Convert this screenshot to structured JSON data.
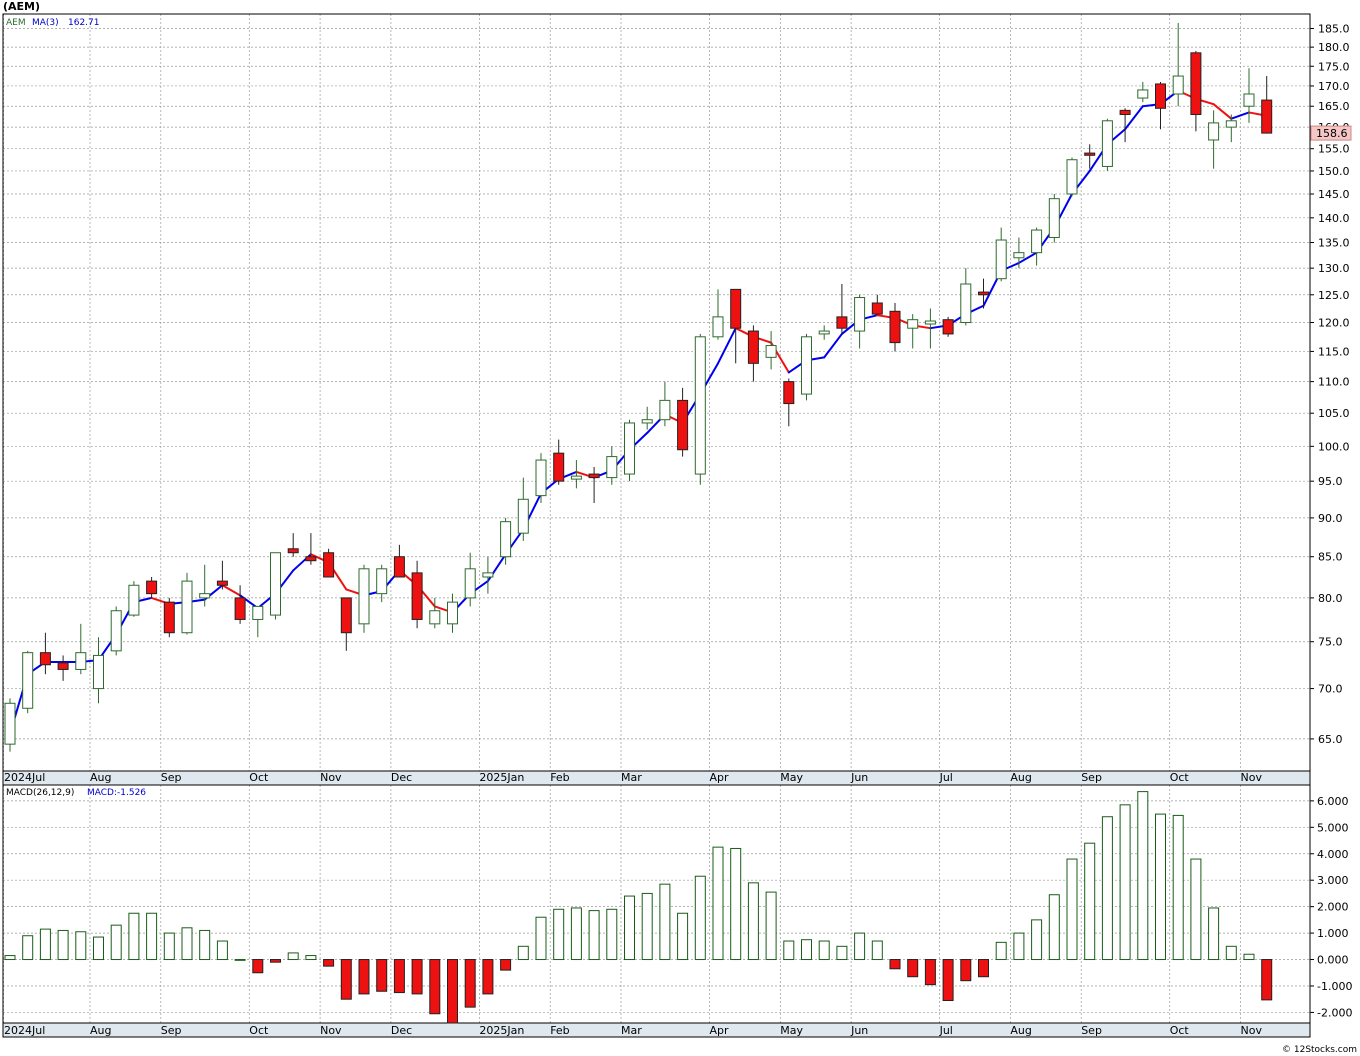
{
  "ticker_title": "(AEM)",
  "legend_ticker": "AEM",
  "legend_ma_label": "MA(3)",
  "legend_ma_value": "162.71",
  "last_price_tag": "158.6",
  "macd_label": "MACD(26,12,9)",
  "macd_value_label": "MACD:-1.526",
  "watermark": "© 12Stocks.com",
  "colors": {
    "up_candle_border": "#2e6b2e",
    "down_candle_fill": "#ee1111",
    "ma_up": "#0000ee",
    "ma_down": "#ee1111",
    "macd_pos_border": "#1a5c1a",
    "macd_neg_fill": "#ee1111",
    "grid": "#9a9a9a",
    "axis_strip": "#dfe8ef",
    "price_tag_bg": "#f4c6c6"
  },
  "chart_data": [
    {
      "type": "candlestick",
      "title": "(AEM)",
      "period": "weekly",
      "ylim": [
        62,
        189
      ],
      "grid": true,
      "y_ticks": [
        65,
        70,
        75,
        80,
        85,
        90,
        95,
        100,
        105,
        110,
        115,
        120,
        125,
        130,
        135,
        140,
        145,
        150,
        155,
        160,
        165,
        170,
        175,
        180,
        185
      ],
      "x_tick_labels": [
        "2024Jul",
        "Aug",
        "Sep",
        "Oct",
        "Nov",
        "Dec",
        "2025Jan",
        "Feb",
        "Mar",
        "Apr",
        "May",
        "Jun",
        "Jul",
        "Aug",
        "Sep",
        "Oct",
        "Nov"
      ],
      "x_tick_bar_index": [
        0,
        5,
        9,
        14,
        18,
        22,
        27,
        31,
        35,
        40,
        44,
        48,
        53,
        57,
        61,
        66,
        70
      ],
      "ohlc": [
        [
          64.5,
          69.0,
          63.8,
          68.5
        ],
        [
          68.0,
          74.0,
          67.5,
          73.8
        ],
        [
          73.8,
          76.0,
          71.5,
          72.5
        ],
        [
          72.7,
          73.5,
          70.8,
          72.0
        ],
        [
          72.0,
          77.0,
          71.5,
          73.8
        ],
        [
          70.0,
          75.5,
          68.5,
          73.5
        ],
        [
          74.0,
          79.0,
          73.5,
          78.5
        ],
        [
          78.0,
          82.0,
          77.8,
          81.5
        ],
        [
          82.0,
          82.5,
          80.0,
          80.5
        ],
        [
          79.5,
          80.0,
          75.5,
          76.0
        ],
        [
          76.0,
          83.0,
          75.8,
          82.0
        ],
        [
          80.0,
          84.0,
          79.0,
          80.5
        ],
        [
          82.0,
          84.5,
          81.0,
          81.5
        ],
        [
          80.0,
          81.5,
          77.0,
          77.5
        ],
        [
          77.5,
          79.0,
          75.5,
          79.0
        ],
        [
          78.0,
          85.5,
          77.5,
          85.5
        ],
        [
          86.0,
          88.0,
          85.0,
          85.5
        ],
        [
          85.0,
          88.0,
          84.0,
          84.5
        ],
        [
          85.5,
          86.0,
          82.5,
          82.5
        ],
        [
          80.0,
          80.0,
          74.0,
          76.0
        ],
        [
          77.0,
          84.0,
          76.0,
          83.5
        ],
        [
          80.5,
          84.0,
          79.5,
          83.5
        ],
        [
          85.0,
          86.5,
          82.5,
          82.5
        ],
        [
          83.0,
          84.5,
          76.5,
          77.5
        ],
        [
          77.0,
          80.0,
          76.5,
          78.5
        ],
        [
          77.0,
          80.5,
          76.0,
          79.5
        ],
        [
          80.0,
          85.5,
          79.0,
          83.5
        ],
        [
          82.5,
          85.0,
          80.5,
          83.0
        ],
        [
          85.0,
          90.0,
          84.0,
          89.5
        ],
        [
          88.0,
          95.5,
          87.0,
          92.5
        ],
        [
          93.0,
          99.0,
          92.0,
          98.0
        ],
        [
          99.0,
          101.0,
          94.5,
          95.0
        ],
        [
          95.5,
          98.0,
          94.0,
          95.5
        ],
        [
          96.0,
          97.0,
          92.0,
          95.5
        ],
        [
          95.5,
          100.0,
          94.5,
          98.5
        ],
        [
          96.0,
          104.0,
          95.0,
          103.5
        ],
        [
          103.5,
          106.0,
          102.5,
          104.0
        ],
        [
          104.0,
          110.0,
          103.0,
          107.0
        ],
        [
          107.0,
          109.0,
          98.5,
          99.5
        ],
        [
          96.0,
          118.0,
          94.5,
          117.5
        ],
        [
          117.5,
          126.0,
          117.0,
          121.0
        ],
        [
          126.0,
          126.0,
          113.0,
          119.0
        ],
        [
          118.5,
          119.5,
          110.0,
          113.0
        ],
        [
          114.0,
          118.5,
          112.0,
          116.0
        ],
        [
          110.0,
          110.5,
          103.0,
          106.5
        ],
        [
          108.0,
          118.0,
          107.0,
          117.5
        ],
        [
          118.0,
          119.5,
          117.0,
          118.5
        ],
        [
          121.0,
          127.0,
          118.0,
          119.0
        ],
        [
          118.5,
          125.0,
          115.5,
          124.5
        ],
        [
          123.5,
          125.0,
          121.5,
          121.5
        ],
        [
          122.0,
          123.5,
          115.0,
          116.5
        ],
        [
          119.0,
          121.5,
          115.5,
          120.5
        ],
        [
          120.0,
          122.5,
          115.5,
          120.0
        ],
        [
          120.5,
          121.0,
          117.5,
          118.0
        ],
        [
          120.0,
          130.0,
          119.5,
          127.0
        ],
        [
          125.5,
          128.0,
          122.5,
          125.0
        ],
        [
          128.0,
          138.0,
          127.5,
          135.5
        ],
        [
          132.0,
          136.0,
          130.0,
          133.0
        ],
        [
          133.0,
          138.0,
          130.5,
          137.5
        ],
        [
          136.0,
          145.0,
          135.0,
          144.0
        ],
        [
          145.0,
          153.0,
          144.5,
          152.5
        ],
        [
          154.0,
          156.0,
          150.5,
          153.5
        ],
        [
          151.0,
          162.0,
          150.0,
          161.5
        ],
        [
          164.0,
          164.5,
          156.5,
          163.0
        ],
        [
          167.0,
          171.0,
          166.0,
          169.0
        ],
        [
          170.5,
          171.0,
          159.5,
          164.5
        ],
        [
          168.0,
          186.5,
          165.0,
          172.5
        ],
        [
          178.5,
          179.0,
          159.0,
          163.0
        ],
        [
          157.0,
          164.0,
          150.5,
          161.0
        ],
        [
          160.0,
          163.0,
          156.5,
          161.5
        ],
        [
          165.0,
          174.5,
          161.0,
          168.0
        ],
        [
          166.5,
          172.5,
          158.5,
          158.6
        ]
      ],
      "ma3": [
        65.5,
        71.5,
        72.8,
        72.8,
        72.8,
        73.0,
        75.8,
        79.5,
        80.0,
        79.3,
        79.5,
        79.8,
        81.5,
        80.3,
        78.8,
        80.5,
        83.3,
        85.3,
        84.3,
        81.0,
        80.3,
        80.8,
        83.3,
        81.5,
        79.0,
        78.3,
        80.5,
        82.0,
        85.3,
        88.5,
        93.3,
        95.3,
        96.3,
        95.5,
        96.5,
        99.5,
        102.0,
        104.8,
        103.5,
        108.0,
        113.0,
        119.0,
        117.5,
        116.5,
        111.5,
        113.5,
        114.0,
        118.0,
        120.5,
        121.3,
        120.8,
        119.5,
        119.0,
        119.5,
        121.5,
        123.0,
        129.5,
        131.0,
        133.0,
        138.0,
        145.0,
        150.0,
        156.0,
        159.5,
        165.0,
        165.5,
        168.8,
        166.8,
        165.5,
        162.0,
        163.5,
        162.7
      ],
      "ma_trend_up": [
        true,
        true,
        true,
        true,
        true,
        true,
        true,
        true,
        true,
        false,
        true,
        true,
        true,
        false,
        true,
        true,
        true,
        true,
        false,
        false,
        false,
        true,
        true,
        false,
        false,
        false,
        true,
        true,
        true,
        true,
        true,
        true,
        true,
        false,
        true,
        true,
        true,
        true,
        false,
        true,
        true,
        true,
        false,
        false,
        false,
        true,
        true,
        true,
        true,
        true,
        false,
        false,
        false,
        true,
        true,
        true,
        true,
        true,
        true,
        true,
        true,
        true,
        true,
        true,
        true,
        true,
        true,
        false,
        false,
        false,
        true,
        false
      ],
      "last_price": 158.6
    },
    {
      "type": "bar",
      "title": "MACD(26,12,9)",
      "ylim": [
        -2.4,
        6.6
      ],
      "grid": true,
      "y_ticks": [
        -2.0,
        -1.0,
        0.0,
        1.0,
        2.0,
        3.0,
        4.0,
        5.0,
        6.0
      ],
      "y_tick_labels": [
        "-2.000",
        "-1.000",
        "0.000",
        "1.000",
        "2.000",
        "3.000",
        "4.000",
        "5.000",
        "6.000"
      ],
      "x_tick_labels": [
        "2024Jul",
        "Aug",
        "Sep",
        "Oct",
        "Nov",
        "Dec",
        "2025Jan",
        "Feb",
        "Mar",
        "Apr",
        "May",
        "Jun",
        "Jul",
        "Aug",
        "Sep",
        "Oct",
        "Nov"
      ],
      "values": [
        0.15,
        0.9,
        1.15,
        1.1,
        1.05,
        0.85,
        1.3,
        1.75,
        1.75,
        1.0,
        1.2,
        1.1,
        0.7,
        0.0,
        -0.5,
        -0.1,
        0.25,
        0.15,
        -0.25,
        -1.5,
        -1.3,
        -1.2,
        -1.25,
        -1.3,
        -2.05,
        -2.4,
        -1.8,
        -1.3,
        -0.4,
        0.5,
        1.6,
        1.9,
        1.95,
        1.85,
        1.9,
        2.4,
        2.5,
        2.85,
        1.75,
        3.15,
        4.25,
        4.2,
        2.9,
        2.55,
        0.7,
        0.75,
        0.7,
        0.5,
        1.0,
        0.7,
        -0.35,
        -0.65,
        -0.95,
        -1.55,
        -0.8,
        -0.65,
        0.65,
        1.0,
        1.5,
        2.45,
        3.8,
        4.4,
        5.4,
        5.85,
        6.35,
        5.5,
        5.45,
        3.8,
        1.95,
        0.5,
        0.2,
        -1.526
      ]
    }
  ]
}
